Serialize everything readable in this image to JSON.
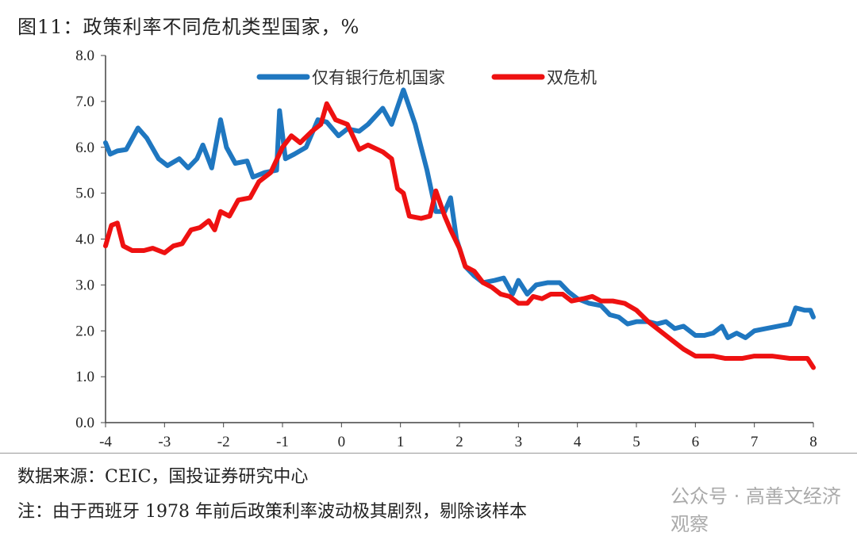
{
  "title": "图11：政策利率不同危机类型国家，%",
  "source": "数据来源：CEIC，国投证券研究中心",
  "note": "注：由于西班牙 1978 年前后政策利率波动极其剧烈，剔除该样本",
  "watermark": "公众号 · 高善文经济观察",
  "chart_data": {
    "type": "line",
    "title": "图11：政策利率不同危机类型国家，%",
    "xlabel": "",
    "ylabel": "",
    "xlim": [
      -4,
      8
    ],
    "ylim": [
      0,
      8
    ],
    "x_ticks": [
      "-4",
      "-3",
      "-2",
      "-1",
      "0",
      "1",
      "2",
      "3",
      "4",
      "5",
      "6",
      "7",
      "8"
    ],
    "y_ticks": [
      "0.0",
      "1.0",
      "2.0",
      "3.0",
      "4.0",
      "5.0",
      "6.0",
      "7.0",
      "8.0"
    ],
    "grid": false,
    "legend": "top-center",
    "series": [
      {
        "name": "仅有银行危机国家",
        "color": "#1f77c0",
        "x": [
          -4,
          -3.92,
          -3.8,
          -3.65,
          -3.45,
          -3.3,
          -3.1,
          -2.95,
          -2.75,
          -2.6,
          -2.45,
          -2.35,
          -2.2,
          -2.05,
          -1.95,
          -1.8,
          -1.6,
          -1.5,
          -1.3,
          -1.1,
          -1.05,
          -0.95,
          -0.8,
          -0.6,
          -0.4,
          -0.25,
          -0.05,
          0.1,
          0.3,
          0.45,
          0.7,
          0.85,
          1.05,
          1.25,
          1.45,
          1.6,
          1.75,
          1.85,
          1.95,
          2.1,
          2.25,
          2.4,
          2.6,
          2.75,
          2.9,
          3.0,
          3.15,
          3.3,
          3.5,
          3.7,
          3.85,
          4.0,
          4.2,
          4.4,
          4.55,
          4.7,
          4.85,
          5.0,
          5.2,
          5.35,
          5.5,
          5.65,
          5.8,
          6.0,
          6.15,
          6.3,
          6.45,
          6.55,
          6.7,
          6.85,
          7.0,
          7.2,
          7.4,
          7.6,
          7.7,
          7.85,
          7.95,
          8.0
        ],
        "y": [
          6.1,
          5.85,
          5.92,
          5.95,
          6.42,
          6.2,
          5.75,
          5.6,
          5.75,
          5.55,
          5.75,
          6.05,
          5.55,
          6.6,
          6.0,
          5.65,
          5.7,
          5.35,
          5.45,
          5.5,
          6.8,
          5.75,
          5.85,
          6.0,
          6.6,
          6.55,
          6.25,
          6.4,
          6.35,
          6.5,
          6.85,
          6.5,
          7.25,
          6.5,
          5.5,
          4.6,
          4.6,
          4.9,
          4.0,
          3.4,
          3.2,
          3.05,
          3.1,
          3.15,
          2.8,
          3.1,
          2.8,
          3.0,
          3.05,
          3.05,
          2.85,
          2.7,
          2.6,
          2.55,
          2.35,
          2.3,
          2.15,
          2.2,
          2.2,
          2.15,
          2.2,
          2.05,
          2.1,
          1.9,
          1.9,
          1.95,
          2.1,
          1.85,
          1.95,
          1.85,
          2.0,
          2.05,
          2.1,
          2.15,
          2.5,
          2.45,
          2.45,
          2.3
        ]
      },
      {
        "name": "双危机",
        "color": "#ee1111",
        "x": [
          -4,
          -3.9,
          -3.8,
          -3.7,
          -3.55,
          -3.35,
          -3.2,
          -3.0,
          -2.85,
          -2.7,
          -2.55,
          -2.4,
          -2.25,
          -2.15,
          -2.05,
          -1.9,
          -1.75,
          -1.55,
          -1.4,
          -1.2,
          -1.0,
          -0.85,
          -0.7,
          -0.5,
          -0.35,
          -0.25,
          -0.1,
          0.1,
          0.3,
          0.45,
          0.7,
          0.85,
          0.95,
          1.05,
          1.15,
          1.35,
          1.5,
          1.6,
          1.75,
          1.85,
          2.0,
          2.1,
          2.25,
          2.4,
          2.55,
          2.7,
          2.85,
          3.0,
          3.15,
          3.25,
          3.4,
          3.55,
          3.75,
          3.9,
          4.1,
          4.25,
          4.4,
          4.6,
          4.8,
          5.0,
          5.2,
          5.4,
          5.6,
          5.8,
          6.0,
          6.3,
          6.5,
          6.8,
          7.0,
          7.3,
          7.6,
          7.9,
          8.0
        ],
        "y": [
          3.85,
          4.3,
          4.35,
          3.85,
          3.75,
          3.75,
          3.8,
          3.7,
          3.85,
          3.9,
          4.2,
          4.25,
          4.4,
          4.2,
          4.6,
          4.5,
          4.85,
          4.9,
          5.25,
          5.45,
          6.0,
          6.25,
          6.1,
          6.35,
          6.5,
          6.95,
          6.6,
          6.5,
          5.95,
          6.05,
          5.9,
          5.75,
          5.1,
          5.0,
          4.5,
          4.45,
          4.5,
          5.05,
          4.5,
          4.2,
          3.8,
          3.4,
          3.3,
          3.05,
          2.95,
          2.8,
          2.75,
          2.6,
          2.6,
          2.75,
          2.7,
          2.8,
          2.8,
          2.65,
          2.7,
          2.75,
          2.65,
          2.65,
          2.6,
          2.45,
          2.2,
          2.0,
          1.8,
          1.6,
          1.45,
          1.45,
          1.4,
          1.4,
          1.45,
          1.45,
          1.4,
          1.4,
          1.2
        ]
      }
    ]
  }
}
